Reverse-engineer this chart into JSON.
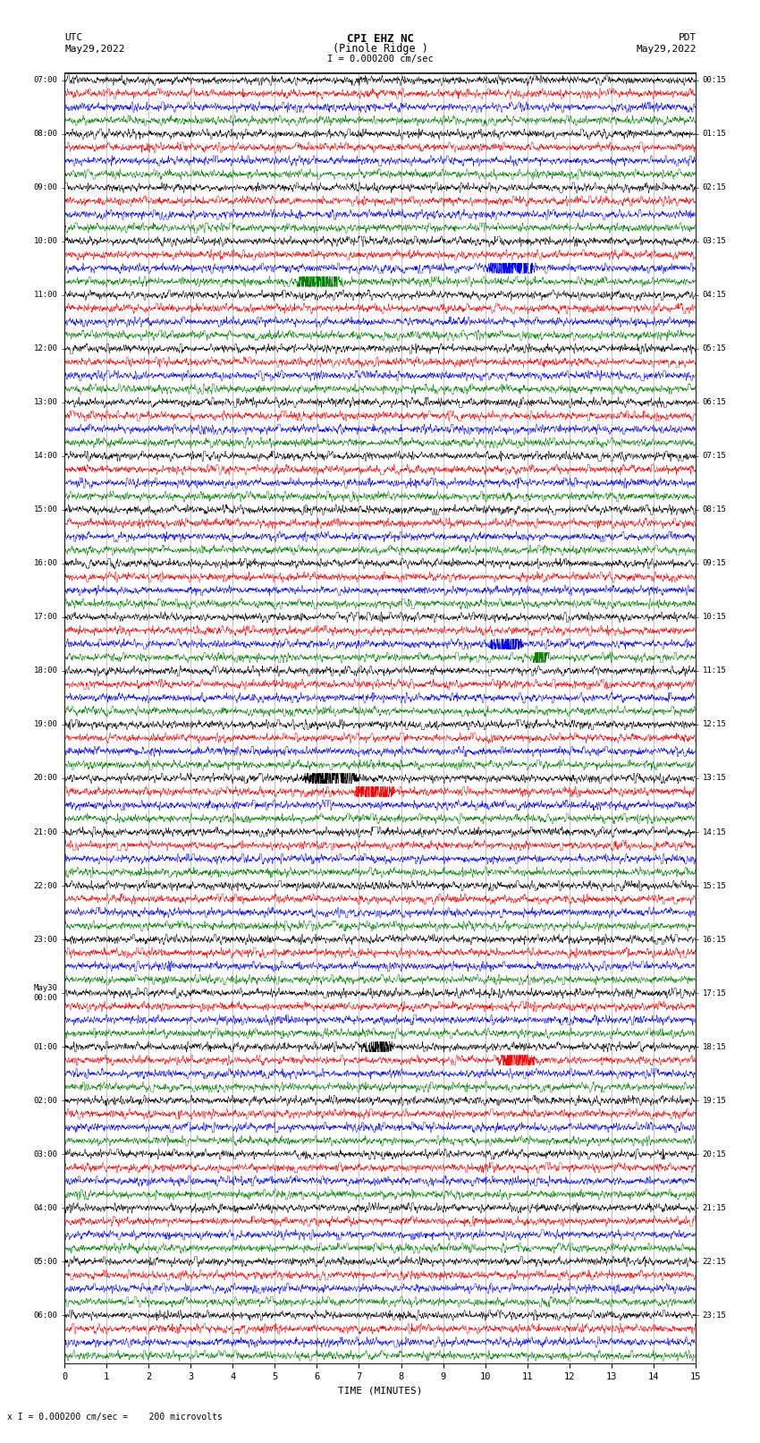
{
  "title_line1": "CPI EHZ NC",
  "title_line2": "(Pinole Ridge )",
  "scale_label": "I = 0.000200 cm/sec",
  "footer_label": "x I = 0.000200 cm/sec =    200 microvolts",
  "left_header_line1": "UTC",
  "left_header_line2": "May29,2022",
  "right_header_line1": "PDT",
  "right_header_line2": "May29,2022",
  "xlabel": "TIME (MINUTES)",
  "left_times": [
    "07:00",
    "08:00",
    "09:00",
    "10:00",
    "11:00",
    "12:00",
    "13:00",
    "14:00",
    "15:00",
    "16:00",
    "17:00",
    "18:00",
    "19:00",
    "20:00",
    "21:00",
    "22:00",
    "23:00",
    "May30\n00:00",
    "01:00",
    "02:00",
    "03:00",
    "04:00",
    "05:00",
    "06:00"
  ],
  "right_times": [
    "00:15",
    "01:15",
    "02:15",
    "03:15",
    "04:15",
    "05:15",
    "06:15",
    "07:15",
    "08:15",
    "09:15",
    "10:15",
    "11:15",
    "12:15",
    "13:15",
    "14:15",
    "15:15",
    "16:15",
    "17:15",
    "18:15",
    "19:15",
    "20:15",
    "21:15",
    "22:15",
    "23:15"
  ],
  "trace_color_cycle": [
    "black",
    "red",
    "blue",
    "green"
  ],
  "n_hours": 24,
  "traces_per_hour": 4,
  "background_color": "white",
  "grid_color": "#888888",
  "xmin": 0,
  "xmax": 15,
  "xticks": [
    0,
    1,
    2,
    3,
    4,
    5,
    6,
    7,
    8,
    9,
    10,
    11,
    12,
    13,
    14,
    15
  ]
}
